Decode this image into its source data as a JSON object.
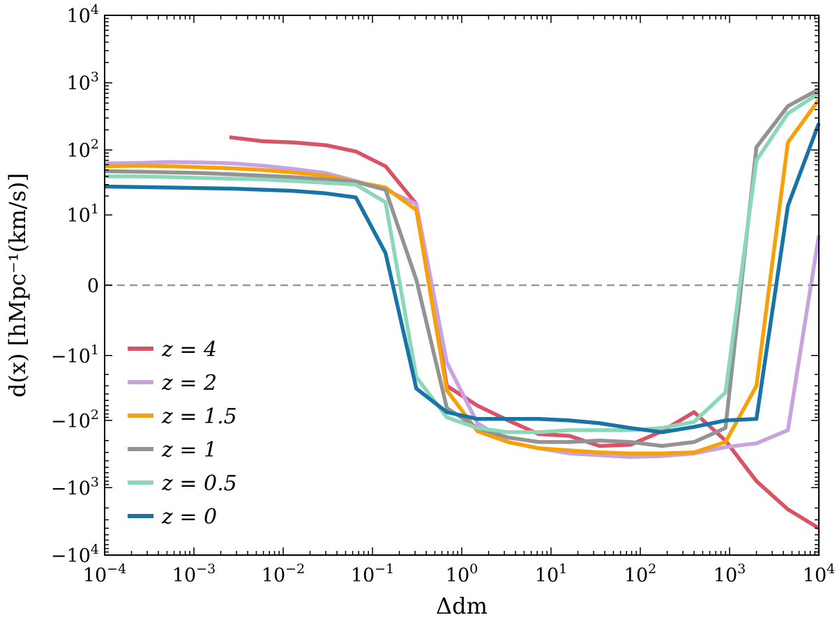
{
  "chart_data": {
    "type": "line",
    "xlabel": "Δdm",
    "ylabel": "d(x) [hMpc⁻¹(km/s)]",
    "xscale": "log",
    "yscale": "symlog",
    "xlim": [
      0.0001,
      10000
    ],
    "ylim": [
      -10000,
      10000
    ],
    "x_ticks": [
      {
        "base": "10",
        "exp": "−4",
        "value": -4
      },
      {
        "base": "10",
        "exp": "−3",
        "value": -3
      },
      {
        "base": "10",
        "exp": "−2",
        "value": -2
      },
      {
        "base": "10",
        "exp": "−1",
        "value": -1
      },
      {
        "base": "10",
        "exp": "0",
        "value": 0
      },
      {
        "base": "10",
        "exp": "1",
        "value": 1
      },
      {
        "base": "10",
        "exp": "2",
        "value": 2
      },
      {
        "base": "10",
        "exp": "3",
        "value": 3
      },
      {
        "base": "10",
        "exp": "4",
        "value": 4
      }
    ],
    "y_ticks": [
      {
        "base": "10",
        "exp": "4",
        "sign": "",
        "value": 4
      },
      {
        "base": "10",
        "exp": "3",
        "sign": "",
        "value": 3
      },
      {
        "base": "10",
        "exp": "2",
        "sign": "",
        "value": 2
      },
      {
        "base": "10",
        "exp": "1",
        "sign": "",
        "value": 1
      },
      {
        "base": "0",
        "exp": "",
        "sign": "",
        "value": 0
      },
      {
        "base": "10",
        "exp": "1",
        "sign": "−",
        "value": -1
      },
      {
        "base": "10",
        "exp": "2",
        "sign": "−",
        "value": -2
      },
      {
        "base": "10",
        "exp": "3",
        "sign": "−",
        "value": -3
      },
      {
        "base": "10",
        "exp": "4",
        "sign": "−",
        "value": -4
      }
    ],
    "reference_line": {
      "y": 0,
      "style": "dashed",
      "color": "#999999"
    },
    "legend_position": "lower-left",
    "series": [
      {
        "name": "z = 4",
        "color": "#d95266",
        "x": [
          0.0025,
          0.006,
          0.013,
          0.03,
          0.065,
          0.14,
          0.31,
          0.68,
          1.5,
          3.3,
          7.3,
          16,
          35,
          78,
          175,
          400,
          900,
          2000,
          4500,
          10000
        ],
        "y": [
          155,
          135,
          130,
          118,
          95,
          57,
          15,
          -30,
          -60,
          -100,
          -160,
          -170,
          -240,
          -230,
          -145,
          -75,
          -200,
          -800,
          -2100,
          -4000
        ]
      },
      {
        "name": "z = 2",
        "color": "#c9a2e0",
        "x": [
          0.0001,
          0.00025,
          0.00055,
          0.0012,
          0.0027,
          0.006,
          0.013,
          0.03,
          0.065,
          0.14,
          0.31,
          0.68,
          1.5,
          3.3,
          7.3,
          16,
          35,
          78,
          175,
          400,
          900,
          2000,
          4500,
          10000
        ],
        "y": [
          63,
          64,
          66,
          65,
          63,
          58,
          52,
          45,
          34,
          25,
          15,
          -13,
          -110,
          -210,
          -260,
          -310,
          -330,
          -350,
          -340,
          -310,
          -250,
          -220,
          -140,
          4.5
        ]
      },
      {
        "name": "z = 1.5",
        "color": "#f5a20a",
        "x": [
          0.0001,
          0.00025,
          0.00055,
          0.0012,
          0.0027,
          0.006,
          0.013,
          0.03,
          0.065,
          0.14,
          0.31,
          0.68,
          1.5,
          3.3,
          7.3,
          16,
          35,
          78,
          175,
          400,
          900,
          2000,
          4500,
          10000
        ],
        "y": [
          57,
          58,
          57,
          55,
          53,
          50,
          46,
          41,
          33,
          27,
          12,
          -35,
          -145,
          -210,
          -260,
          -280,
          -300,
          -310,
          -310,
          -300,
          -210,
          -30,
          130,
          560
        ]
      },
      {
        "name": "z = 1",
        "color": "#939393",
        "x": [
          0.0001,
          0.00025,
          0.00055,
          0.0012,
          0.0027,
          0.006,
          0.013,
          0.03,
          0.065,
          0.14,
          0.31,
          0.68,
          1.5,
          3.3,
          7.3,
          16,
          35,
          78,
          175,
          400,
          900,
          2000,
          4500,
          10000
        ],
        "y": [
          48,
          47,
          46,
          45,
          43,
          41,
          39,
          36,
          33,
          25,
          0.2,
          -65,
          -130,
          -180,
          -210,
          -210,
          -200,
          -210,
          -240,
          -210,
          -130,
          110,
          450,
          800
        ]
      },
      {
        "name": "z = 0.5",
        "color": "#8ad8b9",
        "x": [
          0.0001,
          0.00025,
          0.00055,
          0.0012,
          0.0027,
          0.006,
          0.013,
          0.03,
          0.065,
          0.14,
          0.31,
          0.68,
          1.5,
          3.3,
          7.3,
          16,
          35,
          78,
          175,
          400,
          900,
          2000,
          4500,
          10000
        ],
        "y": [
          40,
          40,
          39,
          38,
          37,
          36,
          34,
          32,
          30,
          16,
          -22,
          -90,
          -130,
          -150,
          -150,
          -140,
          -140,
          -140,
          -130,
          -105,
          -38,
          70,
          350,
          700
        ]
      },
      {
        "name": "z = 0",
        "color": "#1874a8",
        "x": [
          0.0001,
          0.00025,
          0.00055,
          0.0012,
          0.0027,
          0.006,
          0.013,
          0.03,
          0.065,
          0.14,
          0.31,
          0.68,
          1.5,
          3.3,
          7.3,
          16,
          35,
          78,
          175,
          400,
          900,
          2000,
          4500,
          10000
        ],
        "y": [
          28,
          27.5,
          27,
          26.5,
          26,
          25,
          24,
          22,
          19,
          2,
          -33,
          -75,
          -95,
          -95,
          -95,
          -100,
          -110,
          -130,
          -150,
          -125,
          -100,
          -95,
          14,
          250
        ]
      }
    ]
  }
}
